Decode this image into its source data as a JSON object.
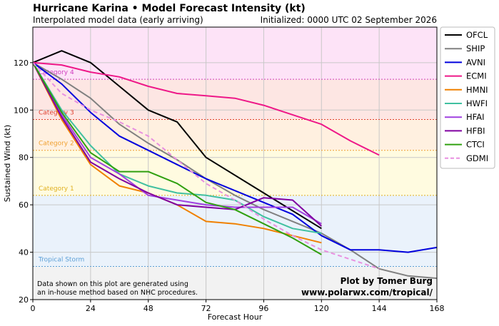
{
  "header": {
    "title": "Hurricane Karina • Model Forecast Intensity (kt)",
    "subtitle": "Interpolated model data (early arriving)",
    "initialized": "Initialized: 0000 UTC 02 September 2026"
  },
  "notes": {
    "disclaimer_line1": "Data shown on this plot are generated using",
    "disclaimer_line2": "an in-house method based on NHC procedures.",
    "credit_line1": "Plot by Tomer Burg",
    "credit_line2": "www.polarwx.com/tropical/"
  },
  "chart_data": {
    "type": "line",
    "title": "Hurricane Karina • Model Forecast Intensity (kt)",
    "subtitle": "Interpolated model data (early arriving)",
    "xlabel": "Forecast Hour",
    "ylabel": "Sustained Wind (kt)",
    "xlim": [
      0,
      168
    ],
    "ylim": [
      20,
      135
    ],
    "xticks": [
      0,
      24,
      48,
      72,
      96,
      120,
      144,
      168
    ],
    "yticks": [
      20,
      40,
      60,
      80,
      100,
      120
    ],
    "grid": true,
    "legend_placement": "outside-right",
    "categories": [
      {
        "name": "Tropical Storm",
        "threshold": 34,
        "band": [
          34,
          64
        ],
        "color": "#5b9fd6",
        "fill": "#eaf2fb"
      },
      {
        "name": "Category 1",
        "threshold": 64,
        "band": [
          64,
          83
        ],
        "color": "#e0b020",
        "fill": "#fffbe0"
      },
      {
        "name": "Category 2",
        "threshold": 83,
        "band": [
          83,
          96
        ],
        "color": "#f0a030",
        "fill": "#fff0e0"
      },
      {
        "name": "Category 3",
        "threshold": 96,
        "band": [
          96,
          113
        ],
        "color": "#e04030",
        "fill": "#fde6e3"
      },
      {
        "name": "Category 4",
        "threshold": 113,
        "band": [
          113,
          137
        ],
        "color": "#d040c0",
        "fill": "#fde3f7"
      }
    ],
    "below_ts_fill": "#f2f2f2",
    "series": [
      {
        "name": "OFCL",
        "color": "#000000",
        "dash": false,
        "x": [
          0,
          12,
          24,
          36,
          48,
          60,
          72,
          96,
          120
        ],
        "y": [
          120,
          125,
          120,
          110,
          100,
          95,
          80,
          65,
          50
        ]
      },
      {
        "name": "SHIP",
        "color": "#808080",
        "dash": false,
        "x": [
          0,
          12,
          24,
          36,
          48,
          60,
          72,
          84,
          96,
          108,
          120,
          132,
          144,
          156,
          168
        ],
        "y": [
          120,
          113,
          105,
          94,
          86,
          79,
          71,
          64,
          58,
          53,
          48,
          41,
          33,
          30,
          29
        ]
      },
      {
        "name": "AVNI",
        "color": "#0000dd",
        "dash": false,
        "x": [
          0,
          12,
          24,
          36,
          48,
          60,
          72,
          84,
          96,
          108,
          120,
          132,
          144,
          156,
          168
        ],
        "y": [
          120,
          111,
          99,
          89,
          83,
          77,
          71,
          66,
          61,
          56,
          47,
          41,
          41,
          40,
          42
        ]
      },
      {
        "name": "ECMI",
        "color": "#ee1888",
        "dash": false,
        "x": [
          0,
          12,
          24,
          36,
          48,
          60,
          72,
          84,
          96,
          108,
          120,
          132,
          144
        ],
        "y": [
          120,
          119,
          116,
          114,
          110,
          107,
          106,
          105,
          102,
          98,
          94,
          87,
          81
        ]
      },
      {
        "name": "HMNI",
        "color": "#f08000",
        "dash": false,
        "x": [
          0,
          12,
          24,
          36,
          48,
          60,
          72,
          84,
          96,
          108,
          120
        ],
        "y": [
          120,
          96,
          77,
          68,
          65,
          60,
          53,
          52,
          50,
          47,
          44
        ]
      },
      {
        "name": "HWFI",
        "color": "#40c0a0",
        "dash": false,
        "x": [
          0,
          12,
          24,
          36,
          48,
          60,
          72,
          84,
          96,
          108,
          120
        ],
        "y": [
          120,
          100,
          85,
          73,
          68,
          65,
          64,
          62,
          55,
          50,
          48
        ]
      },
      {
        "name": "HFAI",
        "color": "#a040e0",
        "dash": false,
        "x": [
          0,
          12,
          24,
          36,
          48,
          60,
          72,
          84,
          96,
          108,
          120
        ],
        "y": [
          120,
          98,
          80,
          73,
          64,
          62,
          60,
          59,
          59,
          59,
          52
        ]
      },
      {
        "name": "HFBI",
        "color": "#8000a0",
        "dash": false,
        "x": [
          0,
          12,
          24,
          36,
          48,
          60,
          72,
          84,
          96,
          108,
          120
        ],
        "y": [
          120,
          97,
          78,
          71,
          65,
          60,
          59,
          58,
          63,
          62,
          51
        ]
      },
      {
        "name": "CTCI",
        "color": "#30a010",
        "dash": false,
        "x": [
          0,
          12,
          24,
          36,
          48,
          60,
          72,
          84,
          96,
          108,
          120
        ],
        "y": [
          120,
          99,
          82,
          74,
          74,
          69,
          61,
          58,
          52,
          46,
          39
        ]
      },
      {
        "name": "GDMI",
        "color": "#e890e0",
        "dash": true,
        "x": [
          0,
          12,
          24,
          36,
          48,
          60,
          72,
          84,
          96,
          108,
          120,
          132,
          144
        ],
        "y": [
          120,
          107,
          100,
          95,
          89,
          79,
          69,
          62,
          54,
          47,
          41,
          37,
          33
        ]
      }
    ]
  }
}
